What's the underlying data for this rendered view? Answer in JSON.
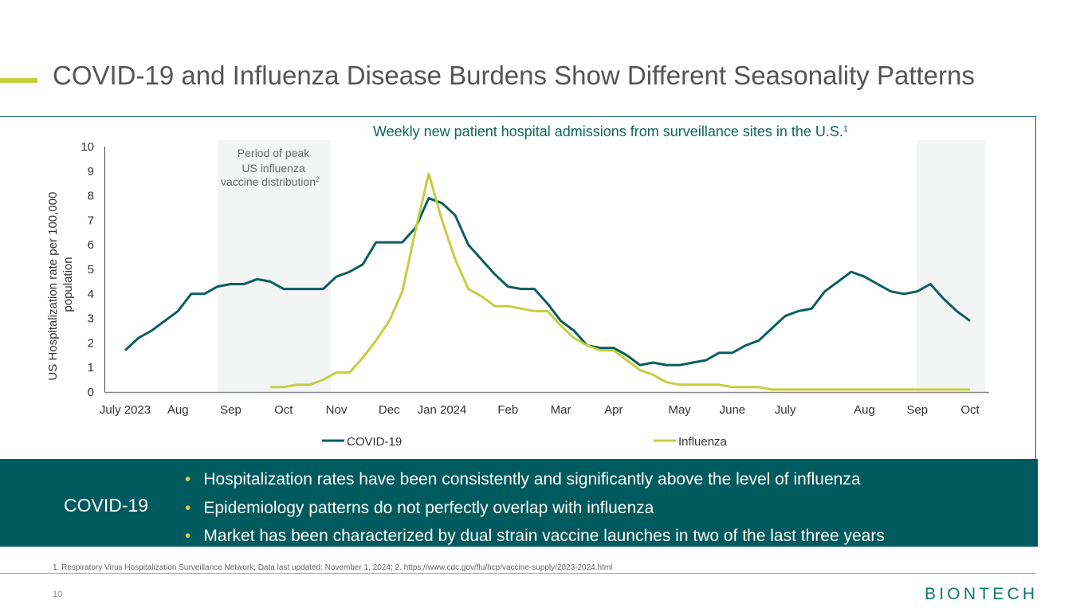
{
  "title": "COVID-19 and Influenza Disease Burdens Show Different Seasonality Patterns",
  "chart_data": {
    "type": "line",
    "title": "Weekly new patient hospital admissions from surveillance sites in the U.S.",
    "title_superscript": "1",
    "y_label": [
      "US Hospitalization rate per 100,000",
      "population"
    ],
    "annotation": "Period of peak US influenza vaccine distribution",
    "annotation_superscript": "2",
    "categories": [
      "July 2023",
      null,
      null,
      null,
      "Aug",
      null,
      null,
      null,
      "Sep",
      null,
      null,
      null,
      "Oct",
      null,
      null,
      null,
      "Nov",
      null,
      null,
      null,
      "Dec",
      null,
      null,
      null,
      "Jan 2024",
      null,
      null,
      null,
      null,
      "Feb",
      null,
      null,
      null,
      "Mar",
      null,
      null,
      null,
      "Apr",
      null,
      null,
      null,
      null,
      "May",
      null,
      null,
      null,
      "June",
      null,
      null,
      null,
      "July",
      null,
      null,
      null,
      null,
      null,
      "Aug",
      null,
      null,
      null,
      "Sep",
      null,
      null,
      null,
      "Oct"
    ],
    "series": [
      {
        "name": "COVID-19",
        "color": "#0b5d60",
        "values": [
          1.7,
          2.2,
          2.5,
          2.9,
          3.3,
          4.0,
          4.0,
          4.3,
          4.4,
          4.4,
          4.6,
          4.5,
          4.2,
          4.2,
          4.2,
          4.2,
          4.7,
          4.9,
          5.2,
          6.1,
          6.1,
          6.1,
          6.7,
          7.9,
          7.7,
          7.2,
          6.0,
          5.4,
          4.8,
          4.3,
          4.2,
          4.2,
          3.6,
          2.9,
          2.5,
          1.9,
          1.8,
          1.8,
          1.5,
          1.1,
          1.2,
          1.1,
          1.1,
          1.2,
          1.3,
          1.6,
          1.6,
          1.9,
          2.1,
          2.6,
          3.1,
          3.3,
          3.4,
          4.1,
          4.5,
          4.9,
          4.7,
          4.4,
          4.1,
          4.0,
          4.1,
          4.4,
          3.8,
          3.3,
          2.9
        ]
      },
      {
        "name": "Influenza",
        "color": "#c3cf3f",
        "values": [
          null,
          null,
          null,
          null,
          null,
          null,
          null,
          null,
          null,
          null,
          null,
          0.2,
          0.2,
          0.3,
          0.3,
          0.5,
          0.8,
          0.8,
          1.4,
          2.1,
          2.9,
          4.1,
          6.6,
          8.9,
          7.0,
          5.4,
          4.2,
          3.9,
          3.5,
          3.5,
          3.4,
          3.3,
          3.3,
          2.7,
          2.2,
          1.9,
          1.7,
          1.7,
          1.3,
          0.9,
          0.7,
          0.4,
          0.3,
          0.3,
          0.3,
          0.3,
          0.2,
          0.2,
          0.2,
          0.1,
          0.1,
          0.1,
          0.1,
          0.1,
          0.1,
          0.1,
          0.1,
          0.1,
          0.1,
          0.1,
          0.1,
          0.1,
          0.1,
          0.1,
          0.1
        ]
      }
    ],
    "ylim": [
      0,
      10
    ],
    "yticks": [
      0,
      1,
      2,
      3,
      4,
      5,
      6,
      7,
      8,
      9,
      10
    ],
    "grid": false,
    "legend": "bottom"
  },
  "banner": {
    "label": "COVID-19",
    "bullets": [
      "Hospitalization rates have been consistently and significantly above the level of influenza",
      "Epidemiology patterns do not perfectly overlap with influenza",
      "Market has been characterized by dual strain vaccine launches in two of the last three years"
    ]
  },
  "footnote": "1. Respiratory Virus Hospitalization Surveillance Network; Data last updated: November 1, 2024; 2. https://www.cdc.gov/flu/hcp/vaccine-supply/2023-2024.html",
  "page_number": "10",
  "logo": "BIONTECH"
}
